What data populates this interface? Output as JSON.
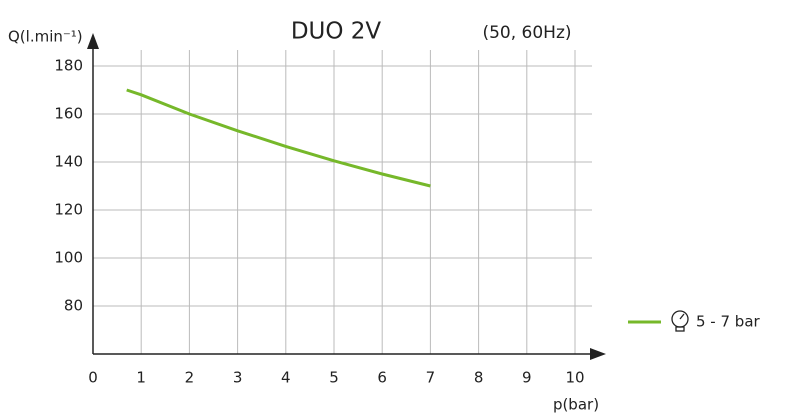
{
  "chart_data": {
    "type": "line",
    "title": "DUO 2V",
    "subtitle": "(50, 60Hz)",
    "y_label": "Q(l.min⁻¹)",
    "x_label": "p(bar)",
    "x": [
      0.7,
      1,
      2,
      3,
      4,
      5,
      6,
      7
    ],
    "series": [
      {
        "name": "5 - 7 bar",
        "color": "#76b82a",
        "values": [
          170,
          168,
          160,
          153,
          146.5,
          140.5,
          135,
          130
        ]
      }
    ],
    "xlim": [
      0,
      10
    ],
    "xticks": [
      0,
      1,
      2,
      3,
      4,
      5,
      6,
      7,
      8,
      9,
      10
    ],
    "ylim": [
      60,
      180
    ],
    "yticks": [
      80,
      100,
      120,
      140,
      160,
      180
    ],
    "grid": true
  }
}
